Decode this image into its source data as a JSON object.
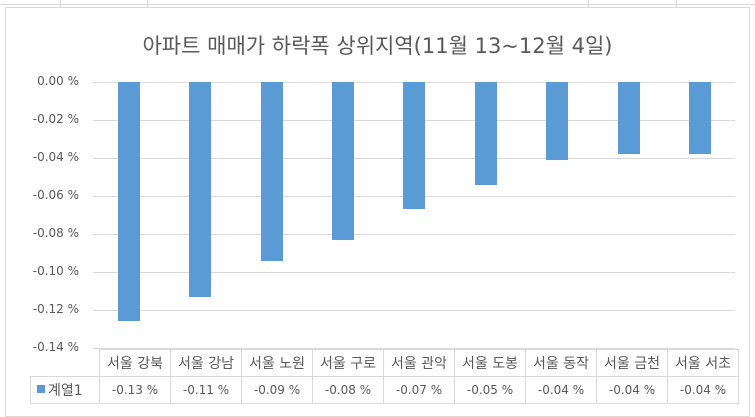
{
  "chart_data": {
    "type": "bar",
    "title": "아파트 매매가 하락폭 상위지역(11월 13~12월 4일)",
    "xlabel": "",
    "ylabel": "",
    "ylim": [
      -0.14,
      0.0
    ],
    "yticks": [
      "0.00 %",
      "-0.02 %",
      "-0.04 %",
      "-0.06 %",
      "-0.08 %",
      "-0.10 %",
      "-0.12 %",
      "-0.14 %"
    ],
    "grid": true,
    "legend_position": "data-table",
    "categories": [
      "서울 강북",
      "서울 강남",
      "서울 노원",
      "서울 구로",
      "서울 관악",
      "서울 도봉",
      "서울 동작",
      "서울 금천",
      "서울 서초"
    ],
    "series": [
      {
        "name": "계열1",
        "color": "#5b9bd5",
        "values": [
          -0.126,
          -0.113,
          -0.094,
          -0.083,
          -0.067,
          -0.054,
          -0.041,
          -0.038,
          -0.038
        ],
        "labels": [
          "-0.13 %",
          "-0.11 %",
          "-0.09 %",
          "-0.08 %",
          "-0.07 %",
          "-0.05 %",
          "-0.04 %",
          "-0.04 %",
          "-0.04 %"
        ]
      }
    ]
  },
  "legend": {
    "series_name": "계열1"
  },
  "colors": {
    "bar": "#5b9bd5",
    "grid": "#d9d9d9",
    "text": "#595959"
  }
}
